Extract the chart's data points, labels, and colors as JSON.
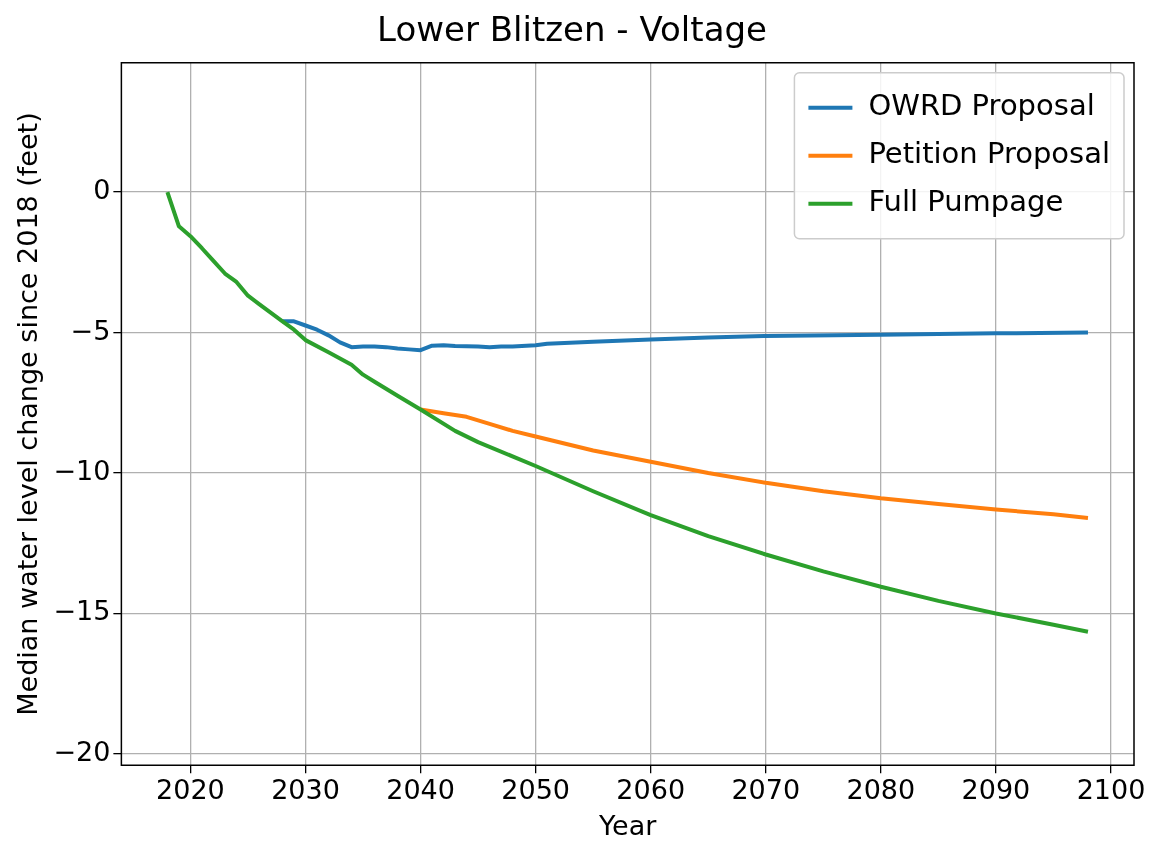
{
  "chart_data": {
    "type": "line",
    "title": "Lower Blitzen - Voltage",
    "xlabel": "Year",
    "ylabel": "Median water level change since 2018 (feet)",
    "xlim": [
      2014,
      2102
    ],
    "xticks": [
      2020,
      2030,
      2040,
      2050,
      2060,
      2070,
      2080,
      2090,
      2100
    ],
    "ylim": [
      -20.4,
      4.6
    ],
    "yticks": [
      -20,
      -15,
      -10,
      -5,
      0
    ],
    "grid": true,
    "legend": "top right",
    "marker": "none",
    "line_style": "solid",
    "series": [
      {
        "name": "OWRD Proposal",
        "color": "#1f77b4",
        "x": [
          2028,
          2029,
          2030,
          2031,
          2032,
          2033,
          2034,
          2035,
          2036,
          2037,
          2038,
          2039,
          2040,
          2041,
          2042,
          2043,
          2045,
          2046,
          2047,
          2048,
          2050,
          2051,
          2055,
          2060,
          2065,
          2070,
          2080,
          2090,
          2098
        ],
        "values": [
          -4.6,
          -4.6,
          -4.75,
          -4.9,
          -5.1,
          -5.35,
          -5.52,
          -5.5,
          -5.5,
          -5.52,
          -5.57,
          -5.6,
          -5.63,
          -5.47,
          -5.45,
          -5.48,
          -5.5,
          -5.52,
          -5.5,
          -5.5,
          -5.45,
          -5.4,
          -5.33,
          -5.25,
          -5.18,
          -5.12,
          -5.08,
          -5.03,
          -5.0
        ]
      },
      {
        "name": "Petition Proposal",
        "color": "#ff7f0e",
        "x": [
          2040,
          2042,
          2044,
          2046,
          2048,
          2050,
          2055,
          2060,
          2065,
          2070,
          2075,
          2080,
          2085,
          2090,
          2095,
          2098
        ],
        "values": [
          -7.74,
          -7.87,
          -8.0,
          -8.25,
          -8.5,
          -8.7,
          -9.2,
          -9.6,
          -10.0,
          -10.35,
          -10.65,
          -10.9,
          -11.1,
          -11.3,
          -11.47,
          -11.6
        ]
      },
      {
        "name": "Full Pumpage",
        "color": "#2ca02c",
        "x": [
          2018,
          2019,
          2020,
          2021,
          2022,
          2023,
          2024,
          2025,
          2026,
          2027,
          2028,
          2029,
          2030,
          2032,
          2034,
          2035,
          2036,
          2038,
          2040,
          2043,
          2045,
          2050,
          2055,
          2060,
          2065,
          2070,
          2075,
          2080,
          2085,
          2090,
          2095,
          2098
        ],
        "values": [
          0,
          -1.22,
          -1.57,
          -2.0,
          -2.45,
          -2.9,
          -3.2,
          -3.69,
          -4.0,
          -4.3,
          -4.6,
          -4.9,
          -5.27,
          -5.7,
          -6.15,
          -6.5,
          -6.75,
          -7.25,
          -7.74,
          -8.5,
          -8.9,
          -9.75,
          -10.65,
          -11.5,
          -12.25,
          -12.9,
          -13.5,
          -14.05,
          -14.55,
          -15.0,
          -15.4,
          -15.65
        ]
      }
    ]
  }
}
